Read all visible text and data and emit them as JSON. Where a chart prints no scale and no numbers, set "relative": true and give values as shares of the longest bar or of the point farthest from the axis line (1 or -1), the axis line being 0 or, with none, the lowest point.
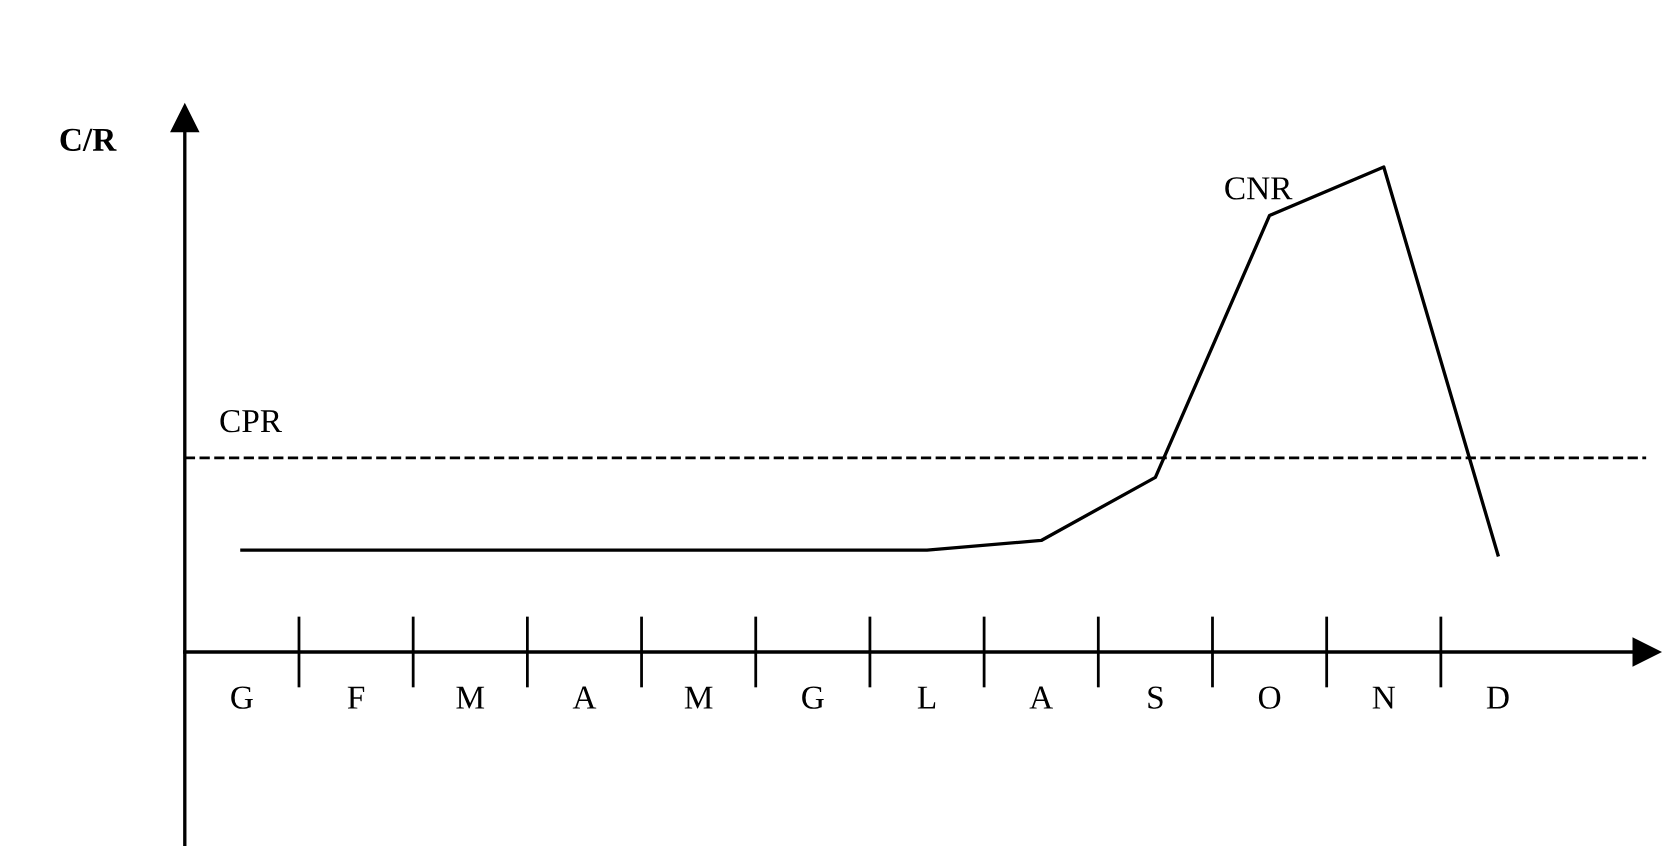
{
  "chart_data": {
    "type": "line",
    "relative": true,
    "ylabel": "C/R",
    "categories": [
      "G",
      "F",
      "M",
      "A",
      "M",
      "G",
      "L",
      "A",
      "S",
      "O",
      "N",
      "D"
    ],
    "series": [
      {
        "name": "CNR",
        "color": "#000000",
        "values": [
          0.21,
          0.21,
          0.21,
          0.21,
          0.21,
          0.21,
          0.21,
          0.23,
          0.36,
          0.9,
          1.0,
          0.2
        ]
      }
    ],
    "ref_lines": [
      {
        "axis": "y",
        "value": 0.4,
        "label": "CPR",
        "line_style": "dashed",
        "color": "#000000"
      }
    ],
    "legend": false,
    "marker": "none",
    "line_style": "solid"
  }
}
